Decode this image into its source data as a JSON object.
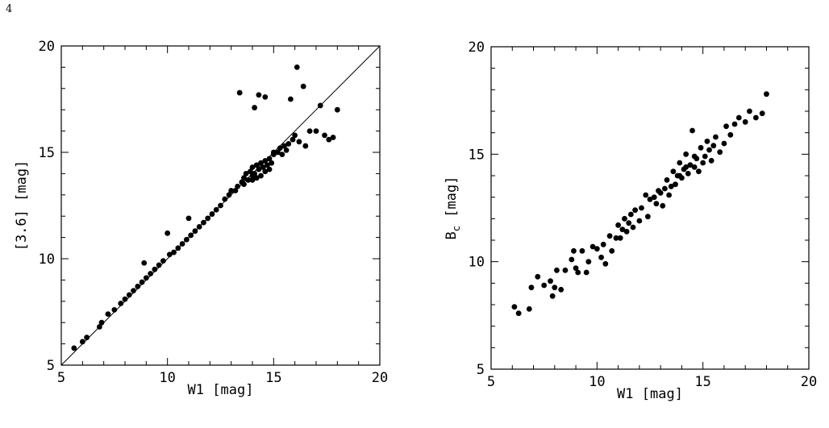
{
  "page": {
    "number": "4"
  },
  "chart_data": [
    {
      "type": "scatter",
      "title": "",
      "xlabel": "W1 [mag]",
      "ylabel": "[3.6] [mag]",
      "xlim": [
        5,
        20
      ],
      "ylim": [
        5,
        20
      ],
      "xticks": [
        5,
        10,
        15,
        20
      ],
      "yticks": [
        5,
        10,
        15,
        20
      ],
      "grid": false,
      "legend": "none",
      "reference_line": {
        "x": [
          5,
          20
        ],
        "y": [
          5,
          20
        ]
      },
      "marker_color": "#000000",
      "points": [
        [
          5.6,
          5.8
        ],
        [
          6.0,
          6.1
        ],
        [
          6.2,
          6.3
        ],
        [
          6.8,
          6.8
        ],
        [
          6.9,
          7.0
        ],
        [
          7.2,
          7.4
        ],
        [
          7.5,
          7.6
        ],
        [
          7.8,
          7.9
        ],
        [
          8.0,
          8.1
        ],
        [
          8.2,
          8.3
        ],
        [
          8.4,
          8.5
        ],
        [
          8.6,
          8.7
        ],
        [
          8.8,
          8.9
        ],
        [
          8.9,
          9.8
        ],
        [
          9.0,
          9.1
        ],
        [
          9.2,
          9.3
        ],
        [
          9.4,
          9.5
        ],
        [
          9.6,
          9.7
        ],
        [
          9.8,
          9.9
        ],
        [
          10.0,
          11.2
        ],
        [
          10.1,
          10.2
        ],
        [
          10.3,
          10.3
        ],
        [
          10.5,
          10.5
        ],
        [
          10.7,
          10.7
        ],
        [
          10.9,
          10.9
        ],
        [
          11.0,
          11.9
        ],
        [
          11.1,
          11.1
        ],
        [
          11.3,
          11.3
        ],
        [
          11.5,
          11.5
        ],
        [
          11.7,
          11.7
        ],
        [
          11.9,
          11.9
        ],
        [
          12.1,
          12.1
        ],
        [
          12.3,
          12.3
        ],
        [
          12.5,
          12.5
        ],
        [
          12.7,
          12.8
        ],
        [
          12.9,
          13.0
        ],
        [
          13.0,
          13.2
        ],
        [
          13.2,
          13.2
        ],
        [
          13.3,
          13.4
        ],
        [
          13.4,
          17.8
        ],
        [
          13.5,
          13.6
        ],
        [
          13.6,
          13.8
        ],
        [
          13.7,
          14.0
        ],
        [
          13.8,
          13.7
        ],
        [
          13.9,
          14.1
        ],
        [
          14.0,
          13.9
        ],
        [
          14.0,
          14.3
        ],
        [
          14.1,
          14.0
        ],
        [
          14.1,
          17.1
        ],
        [
          14.2,
          14.4
        ],
        [
          14.2,
          13.8
        ],
        [
          14.3,
          14.2
        ],
        [
          14.3,
          17.7
        ],
        [
          14.4,
          14.5
        ],
        [
          14.4,
          13.9
        ],
        [
          14.5,
          14.3
        ],
        [
          14.6,
          14.6
        ],
        [
          14.6,
          14.1
        ],
        [
          14.6,
          17.6
        ],
        [
          14.7,
          14.4
        ],
        [
          14.8,
          14.7
        ],
        [
          14.9,
          14.5
        ],
        [
          15.0,
          14.9
        ],
        [
          15.2,
          15.0
        ],
        [
          15.3,
          15.2
        ],
        [
          15.4,
          14.9
        ],
        [
          15.5,
          15.3
        ],
        [
          15.6,
          15.1
        ],
        [
          15.7,
          15.4
        ],
        [
          15.8,
          17.5
        ],
        [
          15.9,
          15.6
        ],
        [
          16.0,
          15.8
        ],
        [
          16.1,
          19.0
        ],
        [
          16.2,
          15.5
        ],
        [
          16.4,
          18.1
        ],
        [
          16.5,
          15.3
        ],
        [
          16.7,
          16.0
        ],
        [
          17.0,
          16.0
        ],
        [
          17.2,
          17.2
        ],
        [
          17.4,
          15.8
        ],
        [
          17.6,
          15.6
        ],
        [
          17.8,
          15.7
        ],
        [
          18.0,
          17.0
        ],
        [
          14.8,
          14.2
        ],
        [
          14.0,
          13.7
        ],
        [
          13.6,
          13.5
        ],
        [
          15.0,
          15.0
        ]
      ]
    },
    {
      "type": "scatter",
      "title": "",
      "xlabel": "W1 [mag]",
      "ylabel": "B",
      "ylabel_subscript": "c",
      "ylabel_suffix": " [mag]",
      "xlim": [
        5,
        20
      ],
      "ylim": [
        5,
        20
      ],
      "xticks": [
        5,
        10,
        15,
        20
      ],
      "yticks": [
        5,
        10,
        15,
        20
      ],
      "grid": false,
      "legend": "none",
      "marker_color": "#000000",
      "points": [
        [
          6.1,
          7.9
        ],
        [
          6.3,
          7.6
        ],
        [
          6.8,
          7.8
        ],
        [
          6.9,
          8.8
        ],
        [
          7.2,
          9.3
        ],
        [
          7.5,
          8.9
        ],
        [
          7.8,
          9.1
        ],
        [
          7.9,
          8.4
        ],
        [
          8.0,
          8.8
        ],
        [
          8.1,
          9.6
        ],
        [
          8.3,
          8.7
        ],
        [
          8.5,
          9.6
        ],
        [
          8.8,
          10.1
        ],
        [
          8.9,
          10.5
        ],
        [
          9.0,
          9.7
        ],
        [
          9.1,
          9.5
        ],
        [
          9.3,
          10.5
        ],
        [
          9.5,
          9.5
        ],
        [
          9.6,
          10.0
        ],
        [
          9.8,
          10.7
        ],
        [
          10.0,
          10.6
        ],
        [
          10.2,
          10.2
        ],
        [
          10.3,
          10.8
        ],
        [
          10.4,
          9.9
        ],
        [
          10.6,
          11.2
        ],
        [
          10.7,
          10.5
        ],
        [
          10.9,
          11.1
        ],
        [
          11.0,
          11.7
        ],
        [
          11.1,
          11.1
        ],
        [
          11.2,
          11.5
        ],
        [
          11.3,
          12.0
        ],
        [
          11.4,
          11.4
        ],
        [
          11.5,
          11.8
        ],
        [
          11.6,
          12.2
        ],
        [
          11.8,
          12.4
        ],
        [
          12.0,
          11.9
        ],
        [
          12.1,
          12.5
        ],
        [
          12.3,
          13.1
        ],
        [
          12.4,
          12.1
        ],
        [
          12.5,
          12.9
        ],
        [
          12.7,
          13.0
        ],
        [
          12.8,
          12.7
        ],
        [
          13.0,
          13.2
        ],
        [
          13.1,
          12.6
        ],
        [
          13.2,
          13.4
        ],
        [
          13.3,
          13.8
        ],
        [
          13.4,
          13.1
        ],
        [
          13.5,
          13.5
        ],
        [
          13.6,
          14.2
        ],
        [
          13.7,
          13.6
        ],
        [
          13.8,
          14.0
        ],
        [
          13.9,
          14.6
        ],
        [
          14.0,
          13.9
        ],
        [
          14.1,
          14.3
        ],
        [
          14.2,
          15.0
        ],
        [
          14.3,
          14.1
        ],
        [
          14.4,
          14.5
        ],
        [
          14.5,
          16.1
        ],
        [
          14.6,
          14.4
        ],
        [
          14.7,
          14.8
        ],
        [
          14.8,
          14.2
        ],
        [
          14.9,
          15.3
        ],
        [
          15.0,
          14.6
        ],
        [
          15.1,
          14.9
        ],
        [
          15.3,
          15.2
        ],
        [
          15.4,
          14.7
        ],
        [
          15.5,
          15.4
        ],
        [
          15.6,
          15.8
        ],
        [
          15.8,
          15.1
        ],
        [
          16.0,
          15.5
        ],
        [
          16.1,
          16.3
        ],
        [
          16.3,
          15.9
        ],
        [
          16.5,
          16.4
        ],
        [
          16.7,
          16.7
        ],
        [
          17.0,
          16.5
        ],
        [
          17.2,
          17.0
        ],
        [
          17.5,
          16.7
        ],
        [
          17.8,
          16.9
        ],
        [
          18.0,
          17.8
        ],
        [
          14.2,
          14.4
        ],
        [
          13.9,
          14.0
        ],
        [
          14.6,
          14.9
        ],
        [
          15.2,
          15.6
        ],
        [
          12.9,
          13.3
        ],
        [
          11.7,
          11.6
        ]
      ]
    }
  ]
}
